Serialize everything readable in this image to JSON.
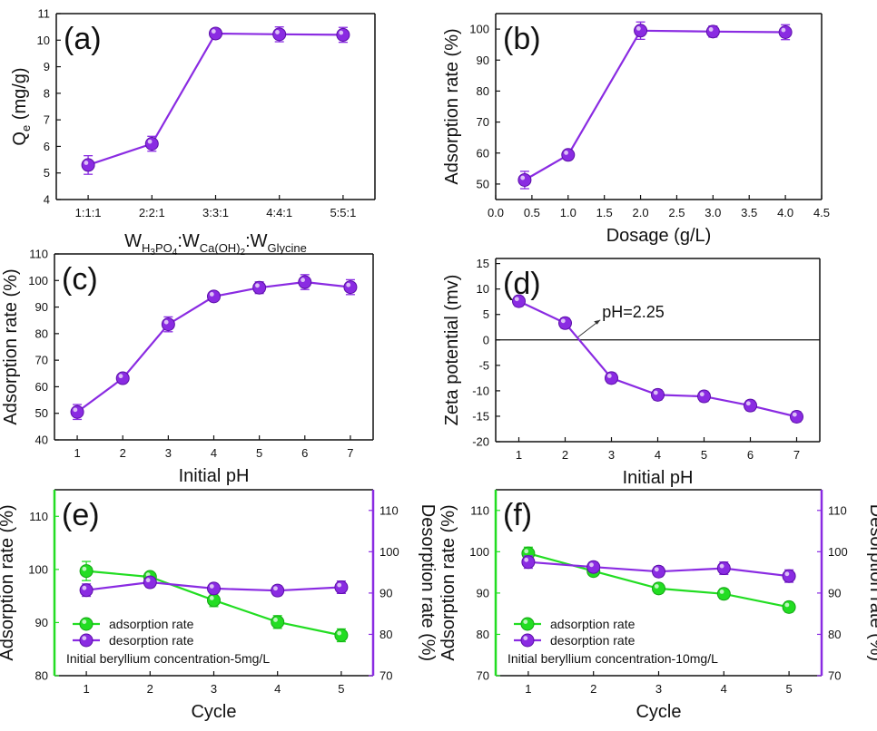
{
  "colors": {
    "purple": "#8a2be2",
    "purple_dark": "#5b0fa8",
    "green": "#22dd22",
    "axis": "#111111"
  },
  "chart_data": [
    {
      "id": "a",
      "type": "line",
      "panel_label": "(a)",
      "xlabel_parts": [
        "W",
        "H",
        "3",
        "PO",
        "4",
        ":W",
        "Ca(OH)",
        "2",
        ":W",
        "Glycine"
      ],
      "ylabel_main": "Q",
      "ylabel_sub": "e",
      "ylabel_unit": " (mg/g)",
      "categories": [
        "1:1:1",
        "2:2:1",
        "3:3:1",
        "4:4:1",
        "5:5:1"
      ],
      "ylim": [
        4,
        11
      ],
      "yticks": [
        4,
        5,
        6,
        7,
        8,
        9,
        10,
        11
      ],
      "series": [
        {
          "name": "Qe",
          "color": "purple",
          "values": [
            5.3,
            6.1,
            10.25,
            10.22,
            10.2
          ],
          "errors": [
            0.35,
            0.28,
            0.18,
            0.28,
            0.28
          ]
        }
      ]
    },
    {
      "id": "b",
      "type": "line",
      "panel_label": "(b)",
      "xlabel": "Dosage (g/L)",
      "ylabel": "Adsorption rate (%)",
      "xlim": [
        0,
        4.5
      ],
      "xticks": [
        "0.0",
        "0.5",
        "1.0",
        "1.5",
        "2.0",
        "2.5",
        "3.0",
        "3.5",
        "4.0",
        "4.5"
      ],
      "ylim": [
        45,
        105
      ],
      "yticks": [
        50,
        60,
        70,
        80,
        90,
        100
      ],
      "series": [
        {
          "name": "Adsorption rate",
          "color": "purple",
          "x": [
            0.4,
            1.0,
            2.0,
            3.0,
            4.0
          ],
          "values": [
            51.3,
            59.4,
            99.5,
            99.2,
            99.0
          ],
          "errors": [
            2.8,
            1.2,
            2.8,
            1.8,
            2.4
          ]
        }
      ]
    },
    {
      "id": "c",
      "type": "line",
      "panel_label": "(c)",
      "xlabel": "Initial pH",
      "ylabel": "Adsorption rate (%)",
      "xticks": [
        "1",
        "2",
        "3",
        "4",
        "5",
        "6",
        "7"
      ],
      "ylim": [
        40,
        110
      ],
      "yticks": [
        40,
        50,
        60,
        70,
        80,
        90,
        100,
        110
      ],
      "series": [
        {
          "name": "Adsorption rate",
          "color": "purple",
          "x": [
            1,
            2,
            3,
            4,
            5,
            6,
            7
          ],
          "values": [
            50.5,
            63.2,
            83.5,
            94.0,
            97.3,
            99.4,
            97.5
          ],
          "errors": [
            2.8,
            1.0,
            2.8,
            1.5,
            2.2,
            2.8,
            2.8
          ]
        }
      ]
    },
    {
      "id": "d",
      "type": "line",
      "panel_label": "(d)",
      "xlabel": "Initial pH",
      "ylabel": "Zeta potential (mv)",
      "xticks": [
        "1",
        "2",
        "3",
        "4",
        "5",
        "6",
        "7"
      ],
      "ylim": [
        -20,
        16
      ],
      "yticks": [
        -20,
        -15,
        -10,
        -5,
        0,
        5,
        10,
        15
      ],
      "annotation": "pH=2.25",
      "zero_crossing": 2.25,
      "series": [
        {
          "name": "Zeta potential",
          "color": "purple",
          "x": [
            1,
            2,
            3,
            4,
            5,
            6,
            7
          ],
          "values": [
            7.6,
            3.3,
            -7.5,
            -10.8,
            -11.1,
            -12.9,
            -15.1
          ],
          "errors": [
            1.0,
            1.0,
            1.0,
            1.0,
            1.0,
            1.0,
            1.0
          ]
        }
      ]
    },
    {
      "id": "e",
      "type": "line",
      "panel_label": "(e)",
      "xlabel": "Cycle",
      "ylabel": "Adsorption rate (%)",
      "ylabel_right": "Desorption rate (%)",
      "xticks": [
        "1",
        "2",
        "3",
        "4",
        "5"
      ],
      "ylim": [
        80,
        115
      ],
      "yticks": [
        80,
        90,
        100,
        110
      ],
      "ylim_right": [
        70,
        115
      ],
      "yticks_right": [
        70,
        80,
        90,
        100,
        110
      ],
      "note": "Initial beryllium concentration-5mg/L",
      "series": [
        {
          "name": "adsorption rate",
          "color": "green",
          "axis": "left",
          "x": [
            1,
            2,
            3,
            4,
            5
          ],
          "values": [
            99.7,
            98.6,
            94.2,
            90.1,
            87.6
          ],
          "errors": [
            1.8,
            0.6,
            1.2,
            1.2,
            1.2
          ]
        },
        {
          "name": "desorption rate",
          "color": "purple",
          "axis": "right",
          "x": [
            1,
            2,
            3,
            4,
            5
          ],
          "values": [
            90.7,
            92.6,
            91.1,
            90.6,
            91.4
          ],
          "errors": [
            1.5,
            1.2,
            1.2,
            1.2,
            1.5
          ]
        }
      ]
    },
    {
      "id": "f",
      "type": "line",
      "panel_label": "(f)",
      "xlabel": "Cycle",
      "ylabel": "Adsorption rate (%)",
      "ylabel_right": "Desorption rate (%)",
      "xticks": [
        "1",
        "2",
        "3",
        "4",
        "5"
      ],
      "ylim": [
        70,
        115
      ],
      "yticks": [
        70,
        80,
        90,
        100,
        110
      ],
      "ylim_right": [
        70,
        115
      ],
      "yticks_right": [
        70,
        80,
        90,
        100,
        110
      ],
      "note": "Initial beryllium concentration-10mg/L",
      "series": [
        {
          "name": "adsorption rate",
          "color": "green",
          "axis": "left",
          "x": [
            1,
            2,
            3,
            4,
            5
          ],
          "values": [
            99.6,
            95.3,
            91.1,
            89.8,
            86.6
          ],
          "errors": [
            1.5,
            1.0,
            1.2,
            1.2,
            1.2
          ]
        },
        {
          "name": "desorption rate",
          "color": "purple",
          "axis": "right",
          "x": [
            1,
            2,
            3,
            4,
            5
          ],
          "values": [
            97.5,
            96.3,
            95.2,
            96.0,
            94.1
          ],
          "errors": [
            1.5,
            1.2,
            1.2,
            1.5,
            1.5
          ]
        }
      ]
    }
  ]
}
